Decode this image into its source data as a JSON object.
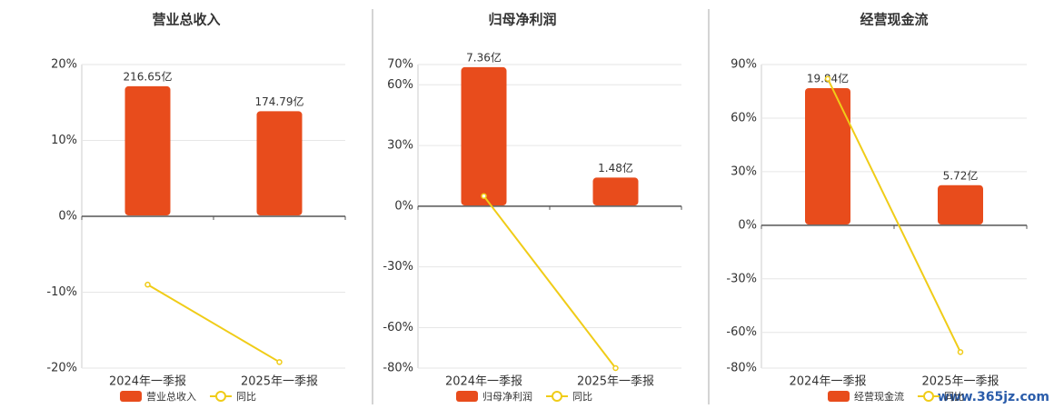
{
  "chart_data": [
    {
      "type": "combo",
      "title": "营业总收入",
      "categories": [
        "2024年一季报",
        "2025年一季报"
      ],
      "series": [
        {
          "name": "营业总收入",
          "type": "bar",
          "axis": "y2",
          "color": "#e84c1c",
          "values": [
            216.65,
            174.79
          ],
          "value_labels": [
            "216.65亿",
            "174.79亿"
          ]
        },
        {
          "name": "同比",
          "type": "line",
          "color": "#f0cc18",
          "values": [
            -9,
            -19.2
          ]
        }
      ],
      "ylim": [
        -20,
        20
      ],
      "yticks": [
        {
          "value": -20,
          "label": "-20%"
        },
        {
          "value": -10,
          "label": "-10%"
        },
        {
          "value": 0,
          "label": "0%"
        },
        {
          "value": 10,
          "label": "10%"
        },
        {
          "value": 20,
          "label": "20%"
        }
      ],
      "y2lim": [
        -256,
        253
      ],
      "grid": true
    },
    {
      "type": "combo",
      "title": "归母净利润",
      "categories": [
        "2024年一季报",
        "2025年一季报"
      ],
      "series": [
        {
          "name": "归母净利润",
          "type": "bar",
          "axis": "y2",
          "color": "#e84c1c",
          "values": [
            7.36,
            1.48
          ],
          "value_labels": [
            "7.36亿",
            "1.48亿"
          ]
        },
        {
          "name": "同比",
          "type": "line",
          "color": "#f0cc18",
          "values": [
            5,
            -80
          ]
        }
      ],
      "ylim": [
        -80,
        70
      ],
      "yticks": [
        {
          "value": -80,
          "label": "-80%"
        },
        {
          "value": -60,
          "label": "-60%"
        },
        {
          "value": -30,
          "label": "-30%"
        },
        {
          "value": 0,
          "label": "0%"
        },
        {
          "value": 30,
          "label": "30%"
        },
        {
          "value": 60,
          "label": "60%"
        },
        {
          "value": 70,
          "label": "70%"
        }
      ],
      "y2lim": [
        -8.66,
        7.5
      ],
      "grid": true
    },
    {
      "type": "combo",
      "title": "经营现金流",
      "categories": [
        "2024年一季报",
        "2025年一季报"
      ],
      "series": [
        {
          "name": "经营现金流",
          "type": "bar",
          "axis": "y2",
          "color": "#e84c1c",
          "values": [
            19.84,
            5.72
          ],
          "value_labels": [
            "19.84亿",
            "5.72亿"
          ]
        },
        {
          "name": "同比",
          "type": "line",
          "color": "#f0cc18",
          "values": [
            82,
            -71
          ]
        }
      ],
      "ylim": [
        -80,
        90
      ],
      "yticks": [
        {
          "value": -80,
          "label": "-80%"
        },
        {
          "value": -60,
          "label": "-60%"
        },
        {
          "value": -30,
          "label": "-30%"
        },
        {
          "value": 0,
          "label": "0%"
        },
        {
          "value": 30,
          "label": "30%"
        },
        {
          "value": 60,
          "label": "60%"
        },
        {
          "value": 90,
          "label": "90%"
        }
      ],
      "y2lim": [
        -20.9,
        23.28
      ],
      "grid": true
    }
  ],
  "watermark": "www.365jz.com"
}
